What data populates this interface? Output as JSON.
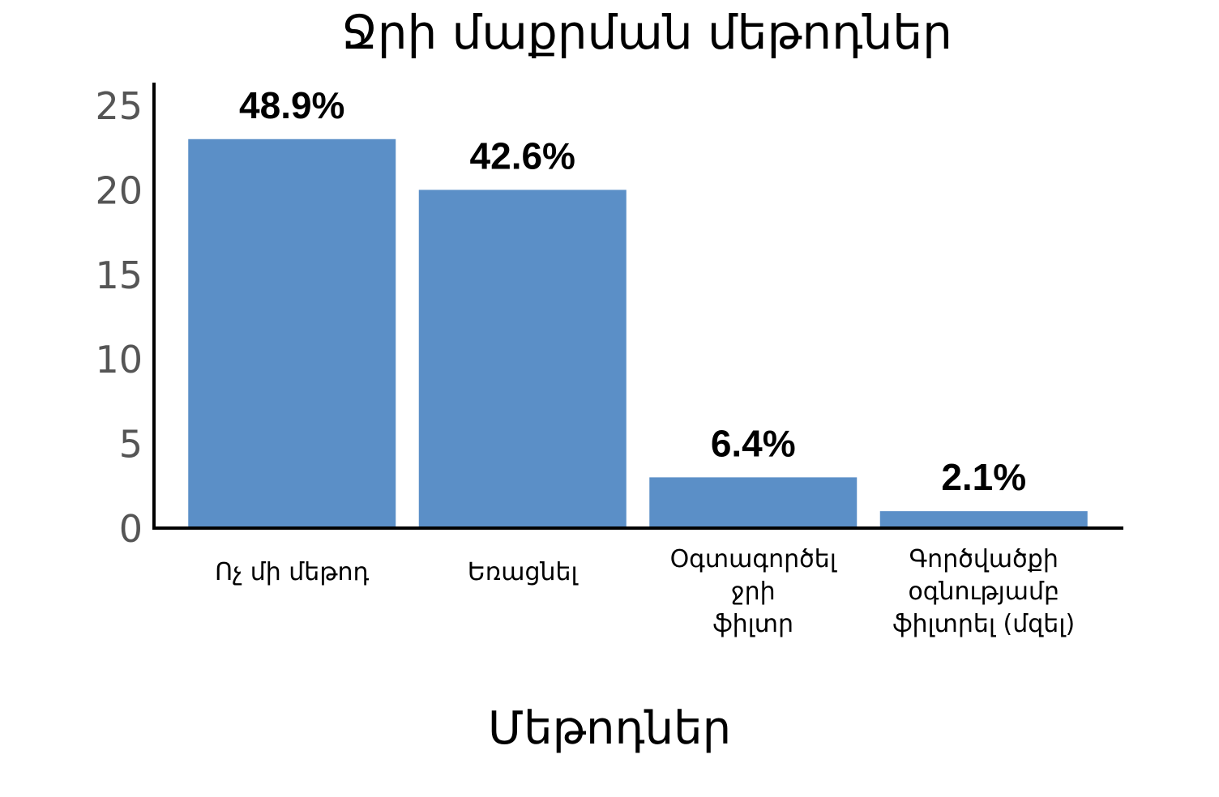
{
  "chart_data": {
    "type": "bar",
    "title": "Ջրի մաքրման մեթոդներ",
    "xlabel": "Մեթոդներ",
    "ylabel": "",
    "ylim": [
      0,
      25
    ],
    "yticks": [
      "0",
      "5",
      "10",
      "15",
      "20",
      "25"
    ],
    "categories": [
      [
        "Ոչ մի մեթոդ"
      ],
      [
        "Եռացնել"
      ],
      [
        "Օգտագործել",
        "ջրի",
        "ֆիլտր"
      ],
      [
        "Գործվածքի",
        "օգնությամբ",
        "ֆիլտրել (մզել)"
      ]
    ],
    "values": [
      23,
      20,
      3,
      1
    ],
    "data_labels": [
      "48.9%",
      "42.6%",
      "6.4%",
      "2.1%"
    ],
    "grid": false,
    "bar_color": "#5b8fc7",
    "axis_color": "#000000"
  }
}
